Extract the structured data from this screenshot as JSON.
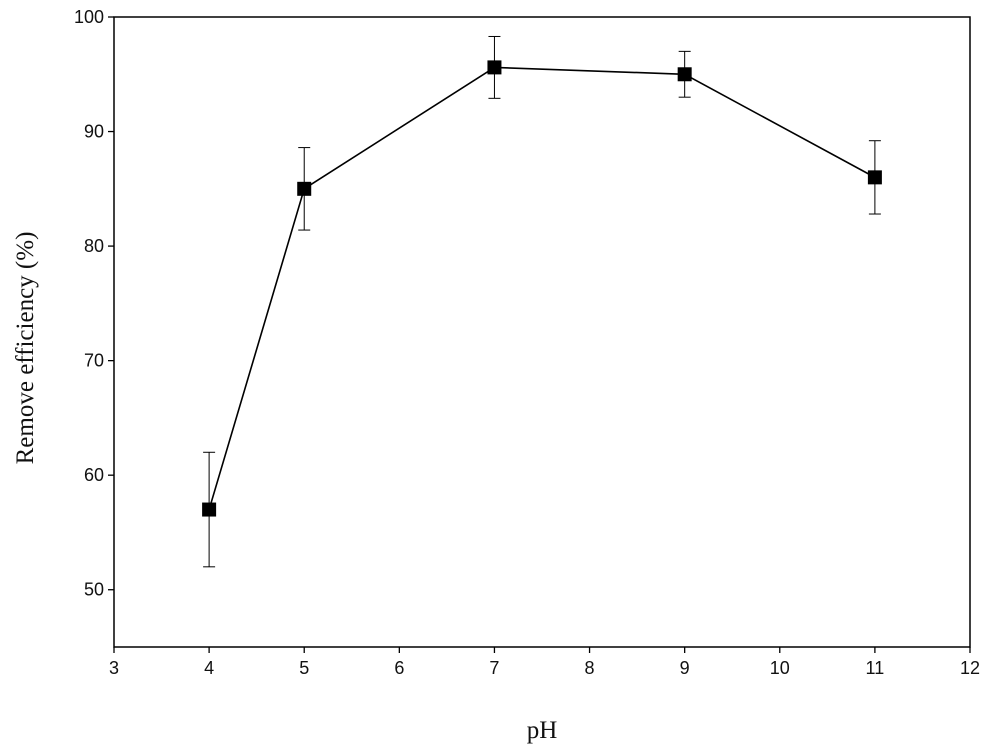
{
  "chart_data": {
    "type": "line",
    "title": "",
    "xlabel": "pH",
    "ylabel": "Remove efficiency (%)",
    "xlim": [
      3,
      12
    ],
    "ylim": [
      45,
      100
    ],
    "x_ticks": [
      3,
      4,
      5,
      6,
      7,
      8,
      9,
      10,
      11,
      12
    ],
    "y_ticks": [
      50,
      60,
      70,
      80,
      90,
      100
    ],
    "grid": false,
    "legend": "none",
    "marker": "square",
    "color": "#000000",
    "series": [
      {
        "points": [
          {
            "x": 4,
            "y": 57.0,
            "err_low": 52.0,
            "err_high": 62.0
          },
          {
            "x": 5,
            "y": 85.0,
            "err_low": 81.4,
            "err_high": 88.6
          },
          {
            "x": 7,
            "y": 95.6,
            "err_low": 92.9,
            "err_high": 98.3
          },
          {
            "x": 9,
            "y": 95.0,
            "err_low": 93.0,
            "err_high": 97.0
          },
          {
            "x": 11,
            "y": 86.0,
            "err_low": 82.8,
            "err_high": 89.2
          }
        ]
      }
    ]
  }
}
